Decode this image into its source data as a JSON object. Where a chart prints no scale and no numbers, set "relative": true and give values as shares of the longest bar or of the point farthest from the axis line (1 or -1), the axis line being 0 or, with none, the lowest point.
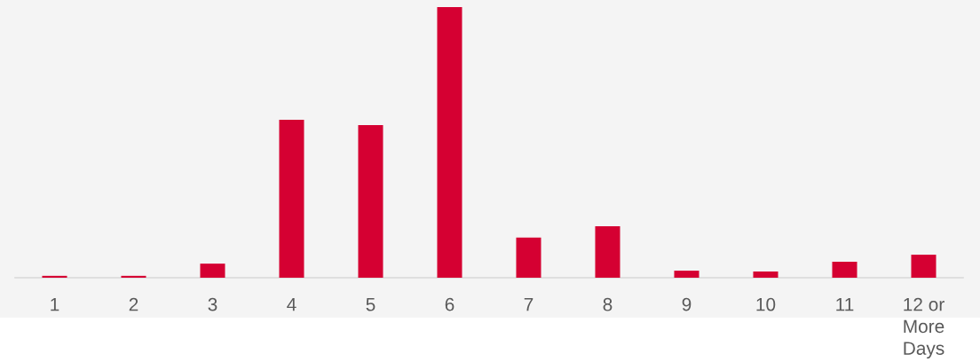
{
  "chart_data": {
    "type": "bar",
    "relative": true,
    "categories": [
      "1",
      "2",
      "3",
      "4",
      "5",
      "6",
      "7",
      "8",
      "9",
      "10",
      "11",
      "12 or More Days"
    ],
    "values": [
      0.007,
      0.007,
      0.052,
      0.584,
      0.564,
      1,
      0.148,
      0.19,
      0.026,
      0.023,
      0.059,
      0.085
    ],
    "color": "#d50032",
    "grid": false,
    "legend": false
  }
}
